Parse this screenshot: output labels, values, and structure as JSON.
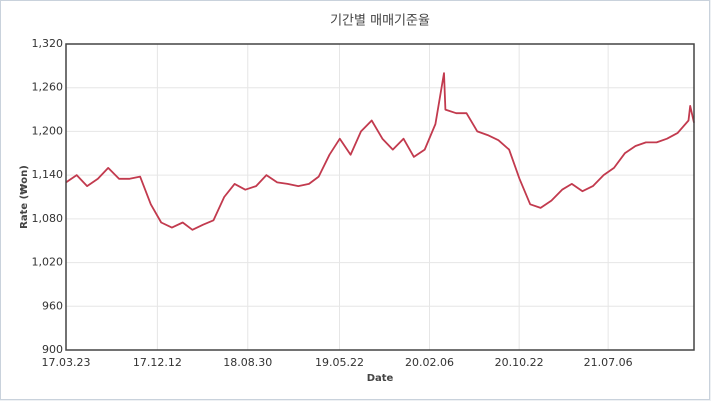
{
  "chart_data": {
    "type": "line",
    "title": "기간별 매매기준율",
    "x_label": "Date",
    "y_label": "Rate (₩on)",
    "x": [
      "17.03.23",
      "17.04.23",
      "17.05.23",
      "17.06.23",
      "17.07.23",
      "17.08.23",
      "17.09.23",
      "17.10.23",
      "17.11.23",
      "17.12.23",
      "18.01.23",
      "18.02.23",
      "18.03.23",
      "18.04.23",
      "18.05.23",
      "18.06.23",
      "18.07.23",
      "18.08.23",
      "18.09.23",
      "18.10.23",
      "18.11.23",
      "18.12.23",
      "19.01.23",
      "19.02.23",
      "19.03.23",
      "19.04.23",
      "19.05.23",
      "19.06.23",
      "19.07.23",
      "19.08.23",
      "19.09.23",
      "19.10.23",
      "19.11.23",
      "19.12.23",
      "20.01.23",
      "20.02.23",
      "20.03.19",
      "20.03.23",
      "20.04.23",
      "20.05.23",
      "20.06.23",
      "20.07.23",
      "20.08.23",
      "20.09.23",
      "20.10.23",
      "20.11.23",
      "20.12.23",
      "21.01.23",
      "21.02.23",
      "21.03.23",
      "21.04.23",
      "21.05.23",
      "21.06.23",
      "21.07.23",
      "21.08.23",
      "21.09.23",
      "21.10.23",
      "21.11.23",
      "21.12.23",
      "22.01.23",
      "22.02.23",
      "22.02.28",
      "22.03.11"
    ],
    "series": [
      {
        "name": "Rate",
        "color": "#c23a4e",
        "values": [
          1130,
          1140,
          1125,
          1135,
          1150,
          1135,
          1135,
          1138,
          1100,
          1075,
          1068,
          1075,
          1065,
          1072,
          1078,
          1110,
          1128,
          1120,
          1125,
          1140,
          1130,
          1128,
          1125,
          1128,
          1138,
          1168,
          1190,
          1168,
          1200,
          1215,
          1190,
          1175,
          1190,
          1165,
          1175,
          1210,
          1280,
          1230,
          1225,
          1225,
          1200,
          1195,
          1188,
          1175,
          1135,
          1100,
          1095,
          1105,
          1120,
          1128,
          1118,
          1125,
          1140,
          1150,
          1170,
          1180,
          1185,
          1185,
          1190,
          1198,
          1215,
          1235,
          1212
        ]
      }
    ],
    "xlim": [
      "17.03.23",
      "22.03.11"
    ],
    "xticks": [
      "17.03.23",
      "17.12.12",
      "18.08.30",
      "19.05.22",
      "20.02.06",
      "20.10.22",
      "21.07.06"
    ],
    "ylim": [
      900,
      1320
    ],
    "yticks": [
      900,
      960,
      {
        "value": 1020,
        "label": "1,020"
      },
      {
        "value": 1080,
        "label": "1,080"
      },
      {
        "value": 1140,
        "label": "1,140"
      },
      {
        "value": 1200,
        "label": "1,200"
      },
      {
        "value": 1260,
        "label": "1,260"
      },
      {
        "value": 1320,
        "label": "1,320"
      }
    ],
    "grid": true
  }
}
